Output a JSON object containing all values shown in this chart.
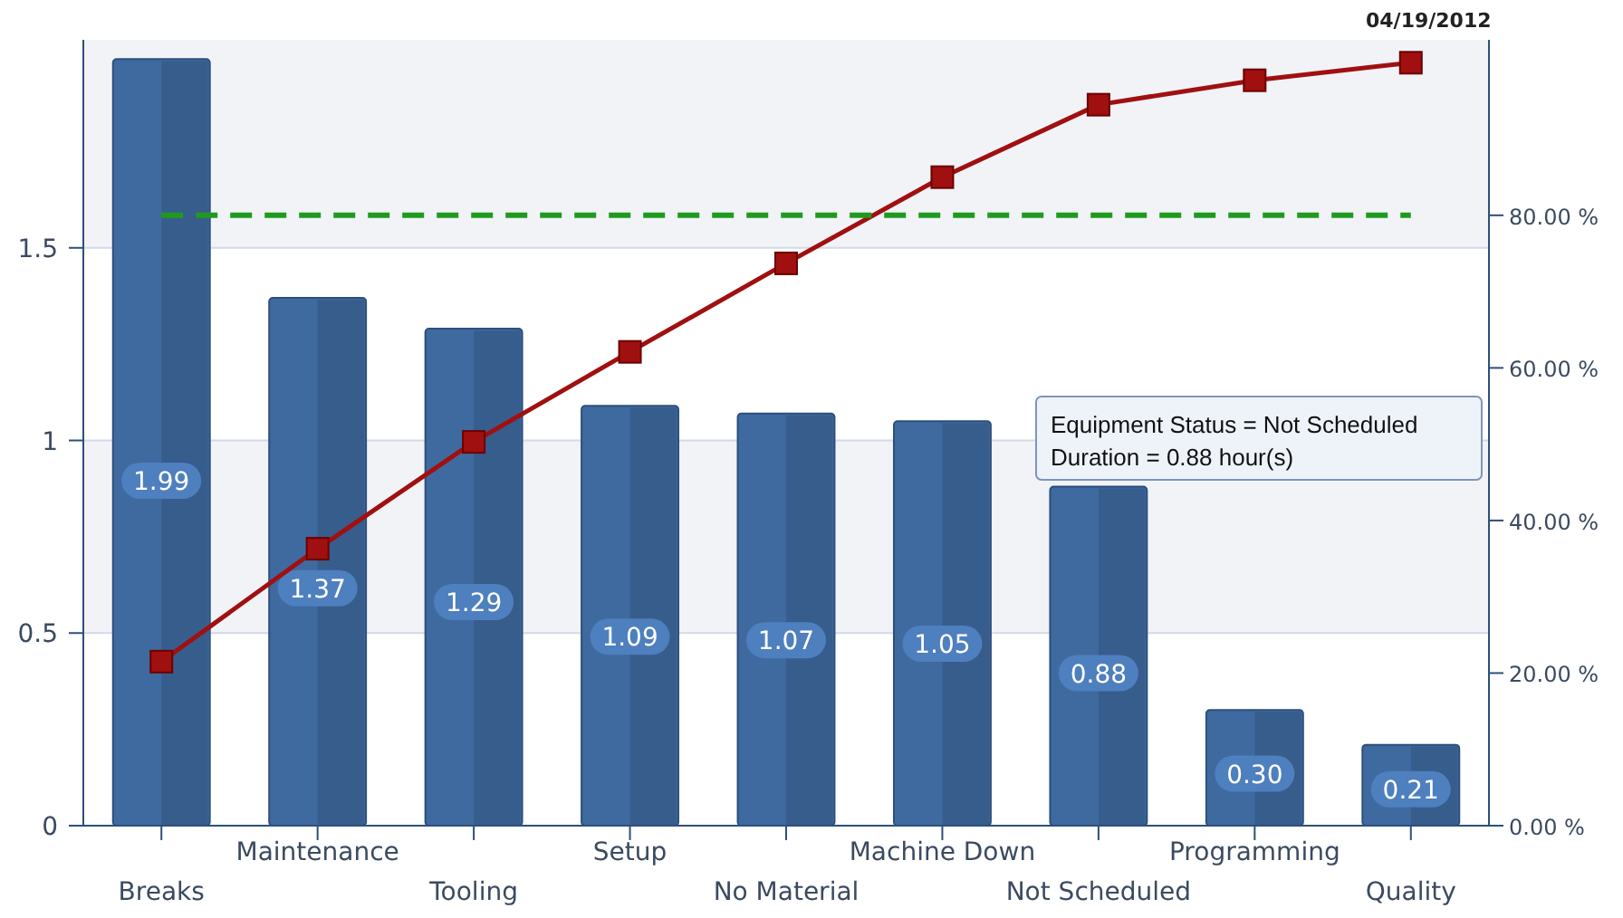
{
  "chart_data": {
    "type": "bar",
    "categories": [
      "Breaks",
      "Maintenance",
      "Tooling",
      "Setup",
      "No Material",
      "Machine Down",
      "Not Scheduled",
      "Programming",
      "Quality"
    ],
    "series": [
      {
        "color": "#3f6aa0",
        "values": [
          1.99,
          1.37,
          1.29,
          1.09,
          1.07,
          1.05,
          0.88,
          0.3,
          0.21
        ],
        "value_labels": [
          "1.99",
          "1.37",
          "1.29",
          "1.09",
          "1.07",
          "1.05",
          "0.88",
          "0.30",
          "0.21"
        ]
      },
      {
        "type": "line",
        "axis": "y2",
        "color": "#a01010",
        "values": [
          21.5,
          36.3,
          50.3,
          62.1,
          73.7,
          85.0,
          94.5,
          97.7,
          100
        ]
      }
    ],
    "marker": "square",
    "line_style": "solid",
    "grid": "y",
    "ylim": [
      0,
      2.04
    ],
    "yticks": [
      0,
      0.5,
      1,
      1.5
    ],
    "y2lim": [
      0,
      103
    ],
    "y2ticks": [
      {
        "value": 0,
        "label": "0.00 %"
      },
      {
        "value": 20,
        "label": "20.00 %"
      },
      {
        "value": 40,
        "label": "40.00 %"
      },
      {
        "value": 60,
        "label": "60.00 %"
      },
      {
        "value": 80,
        "label": "80.00 %"
      }
    ],
    "ref_lines": [
      {
        "axis": "y2",
        "value": 80,
        "color": "#1f9a1f",
        "line_style": "dashed"
      }
    ],
    "annotations": [
      "04/19/2012",
      "Equipment Status = Not Scheduled\nDuration = 0.88 hour(s)"
    ]
  }
}
